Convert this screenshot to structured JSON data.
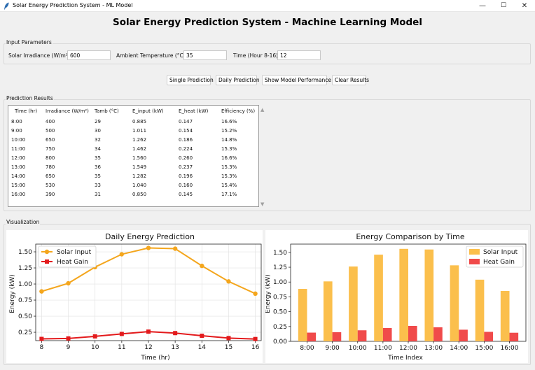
{
  "window": {
    "title": "Solar Energy Prediction System - ML Model",
    "minimize": "—",
    "maximize": "☐",
    "close": "✕"
  },
  "app_title": "Solar Energy Prediction System - Machine Learning Model",
  "input_parameters": {
    "group_label": "Input Parameters",
    "irradiance_label": "Solar Irradiance (W/m²):",
    "irradiance_value": "600",
    "temperature_label": "Ambient Temperature (°C):",
    "temperature_value": "35",
    "time_label": "Time (Hour 8-16):",
    "time_value": "12"
  },
  "buttons": {
    "single": "Single Prediction",
    "daily": "Daily Prediction",
    "performance": "Show Model Performance",
    "clear": "Clear Results"
  },
  "results": {
    "group_label": "Prediction Results",
    "columns": [
      "Time (hr)",
      "Irradiance (W/m²)",
      "Tamb (°C)",
      "E_input (kW)",
      "E_heat (kW)",
      "Efficiency (%)"
    ],
    "rows": [
      [
        "8:00",
        "400",
        "29",
        "0.885",
        "0.147",
        "16.6%"
      ],
      [
        "9:00",
        "500",
        "30",
        "1.011",
        "0.154",
        "15.2%"
      ],
      [
        "10:00",
        "650",
        "32",
        "1.262",
        "0.186",
        "14.8%"
      ],
      [
        "11:00",
        "750",
        "34",
        "1.462",
        "0.224",
        "15.3%"
      ],
      [
        "12:00",
        "800",
        "35",
        "1.560",
        "0.260",
        "16.6%"
      ],
      [
        "13:00",
        "780",
        "36",
        "1.549",
        "0.237",
        "15.3%"
      ],
      [
        "14:00",
        "650",
        "35",
        "1.282",
        "0.196",
        "15.3%"
      ],
      [
        "15:00",
        "530",
        "33",
        "1.040",
        "0.160",
        "15.4%"
      ],
      [
        "16:00",
        "390",
        "31",
        "0.850",
        "0.145",
        "17.1%"
      ]
    ]
  },
  "visualization": {
    "group_label": "Visualization"
  },
  "chart_data": [
    {
      "type": "line",
      "title": "Daily Energy Prediction",
      "xlabel": "Time (hr)",
      "ylabel": "Energy (kW)",
      "x": [
        8,
        9,
        10,
        11,
        12,
        13,
        14,
        15,
        16
      ],
      "xticks": [
        "8",
        "9",
        "10",
        "11",
        "12",
        "13",
        "14",
        "15",
        "16"
      ],
      "xlim": [
        7.78,
        16.22
      ],
      "ylim": [
        0.12,
        1.62
      ],
      "yticks": [
        "0.25",
        "0.50",
        "0.75",
        "1.00",
        "1.25",
        "1.50"
      ],
      "ytick_values": [
        0.25,
        0.5,
        0.75,
        1.0,
        1.25,
        1.5
      ],
      "grid": true,
      "legend": "top-left",
      "series": [
        {
          "name": "Solar Input",
          "color": "#f4a61d",
          "marker": "circle",
          "values": [
            0.885,
            1.011,
            1.262,
            1.462,
            1.56,
            1.549,
            1.282,
            1.04,
            0.85
          ]
        },
        {
          "name": "Heat Gain",
          "color": "#e31a1c",
          "marker": "square",
          "values": [
            0.147,
            0.154,
            0.186,
            0.224,
            0.26,
            0.237,
            0.196,
            0.16,
            0.145
          ]
        }
      ]
    },
    {
      "type": "bar",
      "title": "Energy Comparison by Time",
      "xlabel": "Time Index",
      "ylabel": "Energy (kW)",
      "categories": [
        "8:00",
        "9:00",
        "10:00",
        "11:00",
        "12:00",
        "13:00",
        "14:00",
        "15:00",
        "16:00"
      ],
      "ylim": [
        0,
        1.64
      ],
      "yticks": [
        "0.00",
        "0.25",
        "0.50",
        "0.75",
        "1.00",
        "1.25",
        "1.50"
      ],
      "ytick_values": [
        0,
        0.25,
        0.5,
        0.75,
        1.0,
        1.25,
        1.5
      ],
      "grid": false,
      "legend": "top-right",
      "series": [
        {
          "name": "Solar Input",
          "color": "#fbbf4c",
          "values": [
            0.885,
            1.011,
            1.262,
            1.462,
            1.56,
            1.549,
            1.282,
            1.04,
            0.85
          ]
        },
        {
          "name": "Heat Gain",
          "color": "#f04a4a",
          "values": [
            0.147,
            0.154,
            0.186,
            0.224,
            0.26,
            0.237,
            0.196,
            0.16,
            0.145
          ]
        }
      ]
    }
  ]
}
